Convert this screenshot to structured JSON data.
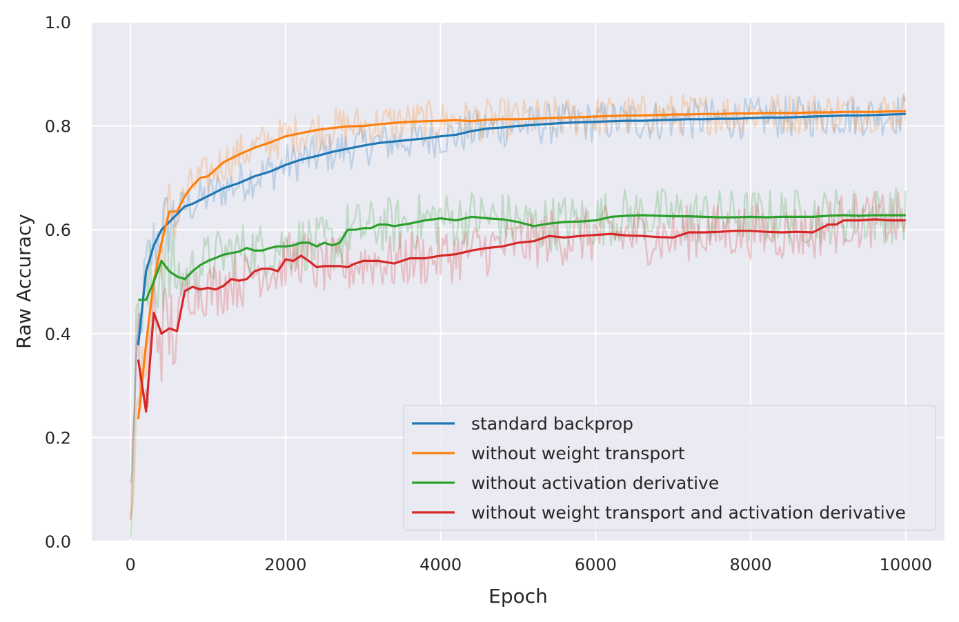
{
  "chart_data": {
    "type": "line",
    "title": "",
    "xlabel": "Epoch",
    "ylabel": "Raw Accuracy",
    "xlim": [
      -500,
      10500
    ],
    "ylim": [
      0.0,
      1.0
    ],
    "xticks": [
      0,
      2000,
      4000,
      6000,
      8000,
      10000
    ],
    "xtick_labels": [
      "0",
      "2000",
      "4000",
      "6000",
      "8000",
      "10000"
    ],
    "yticks": [
      0.0,
      0.2,
      0.4,
      0.6,
      0.8,
      1.0
    ],
    "ytick_labels": [
      "0.0",
      "0.2",
      "0.4",
      "0.6",
      "0.8",
      "1.0"
    ],
    "grid": true,
    "legend_position": "bottom-right",
    "background_color": "#eaeaf2",
    "series": [
      {
        "name": "standard backprop",
        "color": "#1f77b4",
        "raw_spread": 0.04,
        "x": [
          100,
          200,
          300,
          400,
          500,
          600,
          700,
          800,
          1000,
          1200,
          1400,
          1600,
          1800,
          2000,
          2200,
          2400,
          2600,
          2800,
          3000,
          3200,
          3400,
          3600,
          3800,
          4000,
          4200,
          4400,
          4600,
          4800,
          5000,
          5200,
          5400,
          5600,
          5800,
          6000,
          6200,
          6400,
          6600,
          6800,
          7000,
          7200,
          7400,
          7600,
          7800,
          8000,
          8200,
          8400,
          8600,
          8800,
          9000,
          9200,
          9400,
          9600,
          9800,
          10000
        ],
        "y": [
          0.378,
          0.52,
          0.57,
          0.6,
          0.615,
          0.63,
          0.645,
          0.65,
          0.665,
          0.68,
          0.69,
          0.703,
          0.712,
          0.725,
          0.735,
          0.742,
          0.75,
          0.756,
          0.762,
          0.767,
          0.77,
          0.773,
          0.776,
          0.78,
          0.783,
          0.79,
          0.795,
          0.797,
          0.8,
          0.802,
          0.804,
          0.806,
          0.807,
          0.808,
          0.809,
          0.81,
          0.81,
          0.811,
          0.812,
          0.813,
          0.813,
          0.814,
          0.814,
          0.815,
          0.816,
          0.816,
          0.817,
          0.818,
          0.819,
          0.82,
          0.82,
          0.821,
          0.822,
          0.823
        ]
      },
      {
        "name": "without weight transport",
        "color": "#ff7f0e",
        "raw_spread": 0.04,
        "x": [
          100,
          200,
          300,
          400,
          500,
          600,
          700,
          800,
          900,
          1000,
          1200,
          1400,
          1600,
          1800,
          2000,
          2200,
          2400,
          2600,
          2800,
          3000,
          3200,
          3400,
          3600,
          3800,
          4000,
          4200,
          4400,
          4600,
          4800,
          5000,
          5200,
          5400,
          5600,
          5800,
          6000,
          6200,
          6400,
          6600,
          6800,
          7000,
          7200,
          7400,
          7600,
          7800,
          8000,
          8200,
          8400,
          8600,
          8800,
          9000,
          9200,
          9400,
          9600,
          9800,
          10000
        ],
        "y": [
          0.235,
          0.38,
          0.5,
          0.575,
          0.635,
          0.635,
          0.665,
          0.685,
          0.7,
          0.703,
          0.73,
          0.745,
          0.758,
          0.768,
          0.78,
          0.786,
          0.792,
          0.796,
          0.799,
          0.8,
          0.803,
          0.806,
          0.808,
          0.809,
          0.81,
          0.811,
          0.809,
          0.812,
          0.813,
          0.813,
          0.814,
          0.815,
          0.816,
          0.817,
          0.818,
          0.819,
          0.82,
          0.82,
          0.821,
          0.822,
          0.822,
          0.823,
          0.823,
          0.824,
          0.824,
          0.825,
          0.825,
          0.825,
          0.826,
          0.826,
          0.827,
          0.827,
          0.827,
          0.828,
          0.828
        ]
      },
      {
        "name": "without activation derivative",
        "color": "#2ca02c",
        "raw_spread": 0.055,
        "x": [
          100,
          200,
          300,
          400,
          500,
          600,
          700,
          800,
          900,
          1000,
          1100,
          1200,
          1300,
          1400,
          1500,
          1600,
          1700,
          1800,
          1900,
          2000,
          2100,
          2200,
          2300,
          2400,
          2500,
          2600,
          2700,
          2800,
          2900,
          3000,
          3100,
          3200,
          3300,
          3400,
          3600,
          3800,
          4000,
          4200,
          4400,
          4600,
          4800,
          5000,
          5200,
          5400,
          5600,
          5800,
          6000,
          6200,
          6400,
          6600,
          6800,
          7000,
          7200,
          7400,
          7600,
          7800,
          8000,
          8200,
          8400,
          8600,
          8800,
          9000,
          9200,
          9400,
          9600,
          9800,
          10000
        ],
        "y": [
          0.465,
          0.465,
          0.5,
          0.54,
          0.52,
          0.51,
          0.505,
          0.52,
          0.532,
          0.54,
          0.546,
          0.552,
          0.555,
          0.558,
          0.565,
          0.56,
          0.56,
          0.565,
          0.568,
          0.568,
          0.57,
          0.575,
          0.575,
          0.568,
          0.575,
          0.57,
          0.575,
          0.6,
          0.6,
          0.603,
          0.603,
          0.61,
          0.61,
          0.607,
          0.612,
          0.618,
          0.622,
          0.618,
          0.625,
          0.622,
          0.62,
          0.615,
          0.607,
          0.612,
          0.615,
          0.616,
          0.618,
          0.625,
          0.627,
          0.628,
          0.627,
          0.626,
          0.626,
          0.625,
          0.624,
          0.624,
          0.625,
          0.624,
          0.625,
          0.625,
          0.625,
          0.627,
          0.628,
          0.627,
          0.628,
          0.628,
          0.628
        ]
      },
      {
        "name": "without weight transport and activation derivative",
        "color": "#d62728",
        "raw_spread": 0.055,
        "x": [
          100,
          200,
          300,
          400,
          500,
          600,
          700,
          800,
          900,
          1000,
          1100,
          1200,
          1300,
          1400,
          1500,
          1600,
          1700,
          1800,
          1900,
          2000,
          2100,
          2200,
          2300,
          2400,
          2500,
          2600,
          2700,
          2800,
          2900,
          3000,
          3200,
          3400,
          3600,
          3800,
          4000,
          4200,
          4400,
          4600,
          4800,
          5000,
          5200,
          5400,
          5600,
          5800,
          6000,
          6200,
          6400,
          6600,
          6800,
          7000,
          7200,
          7400,
          7600,
          7800,
          8000,
          8200,
          8400,
          8600,
          8800,
          9000,
          9100,
          9200,
          9400,
          9600,
          9800,
          10000
        ],
        "y": [
          0.35,
          0.25,
          0.44,
          0.4,
          0.41,
          0.405,
          0.482,
          0.49,
          0.485,
          0.488,
          0.485,
          0.492,
          0.505,
          0.502,
          0.505,
          0.52,
          0.525,
          0.525,
          0.52,
          0.543,
          0.54,
          0.55,
          0.54,
          0.528,
          0.53,
          0.53,
          0.53,
          0.528,
          0.535,
          0.54,
          0.54,
          0.535,
          0.545,
          0.545,
          0.55,
          0.553,
          0.56,
          0.565,
          0.568,
          0.575,
          0.578,
          0.588,
          0.585,
          0.588,
          0.59,
          0.592,
          0.589,
          0.588,
          0.586,
          0.585,
          0.595,
          0.595,
          0.596,
          0.598,
          0.598,
          0.596,
          0.595,
          0.596,
          0.595,
          0.61,
          0.61,
          0.618,
          0.618,
          0.62,
          0.618,
          0.618
        ]
      }
    ]
  }
}
